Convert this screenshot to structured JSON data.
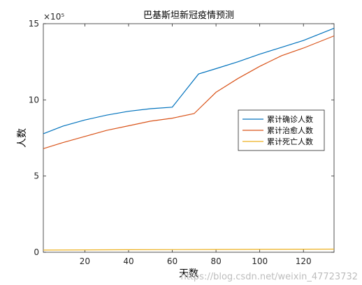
{
  "chart_data": {
    "type": "line",
    "title": "巴基斯坦新冠疫情预测",
    "xlabel": "天数",
    "ylabel": "人数",
    "xlim": [
      1,
      134
    ],
    "ylim": [
      0,
      1500000
    ],
    "x_ticks": [
      20,
      40,
      60,
      80,
      100,
      120
    ],
    "y_ticks": [
      0,
      500000,
      1000000,
      1500000
    ],
    "y_tick_labels": [
      "0",
      "5",
      "10",
      "15"
    ],
    "y_exponent_label": "×10⁵",
    "grid": false,
    "legend_position": "right",
    "series": [
      {
        "name": "累计确诊人数",
        "color": "#0072BD",
        "x": [
          1,
          10,
          20,
          30,
          40,
          50,
          60,
          72,
          80,
          90,
          100,
          110,
          120,
          134
        ],
        "y": [
          778000,
          828000,
          868000,
          900000,
          925000,
          942000,
          952000,
          1170000,
          1205000,
          1250000,
          1300000,
          1345000,
          1390000,
          1470000
        ]
      },
      {
        "name": "累计治愈人数",
        "color": "#D95319",
        "x": [
          1,
          10,
          20,
          30,
          40,
          50,
          60,
          70,
          80,
          90,
          100,
          110,
          120,
          134
        ],
        "y": [
          680000,
          720000,
          760000,
          800000,
          830000,
          860000,
          880000,
          910000,
          1050000,
          1140000,
          1220000,
          1290000,
          1340000,
          1420000
        ]
      },
      {
        "name": "累计死亡人数",
        "color": "#EDB120",
        "x": [
          1,
          40,
          80,
          134
        ],
        "y": [
          14000,
          16500,
          18500,
          20500
        ]
      }
    ]
  },
  "watermark": "https://blog.csdn.net/weixin_47723732"
}
